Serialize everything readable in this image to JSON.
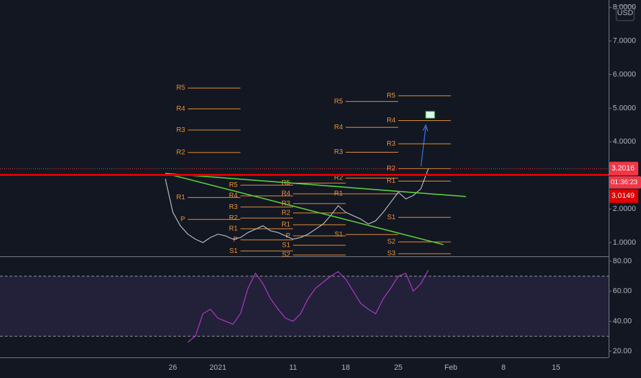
{
  "chart_data": [
    {
      "type": "line",
      "currency": "USD",
      "countdown": "01:36:23",
      "xlim": [
        "2020-12-03",
        "2021-02-22"
      ],
      "xticks": [
        {
          "value": "2020-12-26",
          "label": "26"
        },
        {
          "value": "2021-01-01",
          "label": "2021"
        },
        {
          "value": "2021-01-11",
          "label": "11"
        },
        {
          "value": "2021-01-18",
          "label": "18"
        },
        {
          "value": "2021-01-25",
          "label": "25"
        },
        {
          "value": "2021-02-01",
          "label": "Feb"
        },
        {
          "value": "2021-02-08",
          "label": "8"
        },
        {
          "value": "2021-02-15",
          "label": "15"
        }
      ],
      "ylim": [
        0.61,
        8.22
      ],
      "yticks": [
        {
          "value": 1,
          "label": "1.0000"
        },
        {
          "value": 2,
          "label": "2.0000"
        },
        {
          "value": 4,
          "label": "4.0000"
        },
        {
          "value": 5,
          "label": "5.0000"
        },
        {
          "value": 6,
          "label": "6.0000"
        },
        {
          "value": 7,
          "label": "7.0000"
        },
        {
          "value": 8,
          "label": "8.0000"
        }
      ],
      "x": [
        "2020-12-25",
        "2020-12-26",
        "2020-12-27",
        "2020-12-28",
        "2020-12-29",
        "2020-12-30",
        "2020-12-31",
        "2021-01-01",
        "2021-01-02",
        "2021-01-03",
        "2021-01-04",
        "2021-01-05",
        "2021-01-06",
        "2021-01-07",
        "2021-01-08",
        "2021-01-09",
        "2021-01-10",
        "2021-01-11",
        "2021-01-12",
        "2021-01-13",
        "2021-01-14",
        "2021-01-15",
        "2021-01-16",
        "2021-01-17",
        "2021-01-18",
        "2021-01-19",
        "2021-01-20",
        "2021-01-21",
        "2021-01-22",
        "2021-01-23",
        "2021-01-24",
        "2021-01-25",
        "2021-01-26",
        "2021-01-27",
        "2021-01-28",
        "2021-01-29"
      ],
      "series": [
        {
          "color": "#b8bcc6",
          "values": [
            2.9,
            1.9,
            1.5,
            1.25,
            1.1,
            1.0,
            1.15,
            1.25,
            1.2,
            1.1,
            1.15,
            1.3,
            1.4,
            1.5,
            1.35,
            1.3,
            1.2,
            1.1,
            1.15,
            1.25,
            1.4,
            1.55,
            1.8,
            2.1,
            1.9,
            1.8,
            1.7,
            1.55,
            1.65,
            1.9,
            2.2,
            2.5,
            2.3,
            2.4,
            2.6,
            3.2
          ]
        }
      ],
      "price_lines": [
        {
          "value": 3.2016,
          "label": "3.2016"
        },
        {
          "value": 3.0149,
          "label": "3.0149"
        }
      ],
      "trendlines": [
        {
          "color": "#5bd13a",
          "x": [
            "2020-12-25",
            "2021-02-03"
          ],
          "y": [
            3.06,
            2.37
          ]
        },
        {
          "color": "#5bd13a",
          "x": [
            "2020-12-25",
            "2021-01-31"
          ],
          "y": [
            3.06,
            0.94
          ]
        }
      ],
      "pivots": [
        {
          "x": [
            "2020-12-28",
            "2021-01-04"
          ],
          "levels": [
            {
              "label": "R5",
              "value": 5.6
            },
            {
              "label": "R4",
              "value": 4.98
            },
            {
              "label": "R3",
              "value": 4.35
            },
            {
              "label": "R2",
              "value": 3.68
            },
            {
              "label": "R1",
              "value": 2.34
            },
            {
              "label": "P",
              "value": 1.69
            }
          ]
        },
        {
          "x": [
            "2021-01-04",
            "2021-01-11"
          ],
          "levels": [
            {
              "label": "R5",
              "value": 2.71
            },
            {
              "label": "R4",
              "value": 2.39
            },
            {
              "label": "R3",
              "value": 2.06
            },
            {
              "label": "R2",
              "value": 1.73
            },
            {
              "label": "R1",
              "value": 1.41
            },
            {
              "label": "P",
              "value": 1.08
            },
            {
              "label": "S1",
              "value": 0.75
            }
          ]
        },
        {
          "x": [
            "2021-01-11",
            "2021-01-18"
          ],
          "levels": [
            {
              "label": "R5",
              "value": 2.77
            },
            {
              "label": "R4",
              "value": 2.45
            },
            {
              "label": "R3",
              "value": 2.16
            },
            {
              "label": "R2",
              "value": 1.88
            },
            {
              "label": "R1",
              "value": 1.53
            },
            {
              "label": "P",
              "value": 1.2
            },
            {
              "label": "S1",
              "value": 0.92
            },
            {
              "label": "S2",
              "value": 0.63
            }
          ]
        },
        {
          "x": [
            "2021-01-18",
            "2021-01-25"
          ],
          "levels": [
            {
              "label": "R5",
              "value": 5.2
            },
            {
              "label": "R4",
              "value": 4.43
            },
            {
              "label": "R3",
              "value": 3.69
            },
            {
              "label": "R2",
              "value": 2.92
            },
            {
              "label": "R1",
              "value": 2.45
            },
            {
              "label": "S1",
              "value": 1.24
            }
          ]
        },
        {
          "x": [
            "2021-01-25",
            "2021-02-01"
          ],
          "levels": [
            {
              "label": "R5",
              "value": 5.37
            },
            {
              "label": "R4",
              "value": 4.63
            },
            {
              "label": "R3",
              "value": 3.94
            },
            {
              "label": "R2",
              "value": 3.2
            },
            {
              "label": "R1",
              "value": 2.83
            },
            {
              "label": "S1",
              "value": 1.75
            },
            {
              "label": "S2",
              "value": 1.02
            },
            {
              "label": "S3",
              "value": 0.67
            }
          ]
        }
      ]
    },
    {
      "type": "line",
      "ylim": [
        15.9,
        82.3
      ],
      "yticks": [
        {
          "value": 20,
          "label": "20.00"
        },
        {
          "value": 40,
          "label": "40.00"
        },
        {
          "value": 60,
          "label": "60.00"
        },
        {
          "value": 80,
          "label": "80.00"
        }
      ],
      "bands": [
        30,
        70
      ],
      "x": [
        "2020-12-28",
        "2020-12-29",
        "2020-12-30",
        "2020-12-31",
        "2021-01-01",
        "2021-01-02",
        "2021-01-03",
        "2021-01-04",
        "2021-01-05",
        "2021-01-06",
        "2021-01-07",
        "2021-01-08",
        "2021-01-09",
        "2021-01-10",
        "2021-01-11",
        "2021-01-12",
        "2021-01-13",
        "2021-01-14",
        "2021-01-15",
        "2021-01-16",
        "2021-01-17",
        "2021-01-18",
        "2021-01-19",
        "2021-01-20",
        "2021-01-21",
        "2021-01-22",
        "2021-01-23",
        "2021-01-24",
        "2021-01-25",
        "2021-01-26",
        "2021-01-27",
        "2021-01-28",
        "2021-01-29"
      ],
      "series": [
        {
          "color": "#b03ac8",
          "values": [
            26,
            30,
            45,
            48,
            42,
            40,
            38,
            45,
            62,
            72,
            65,
            55,
            48,
            42,
            40,
            45,
            55,
            62,
            66,
            70,
            73,
            68,
            60,
            52,
            48,
            45,
            55,
            62,
            70,
            72,
            60,
            65,
            74
          ]
        }
      ]
    }
  ]
}
